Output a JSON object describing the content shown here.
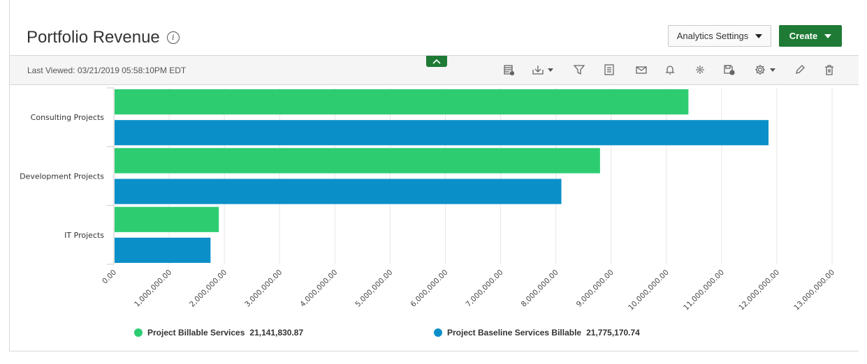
{
  "header": {
    "title": "Portfolio Revenue",
    "analytics_settings_label": "Analytics Settings",
    "create_label": "Create"
  },
  "toolbar": {
    "last_viewed": "Last Viewed: 03/21/2019 05:58:10PM EDT",
    "tools": [
      "table-view-icon",
      "download-icon",
      "filter-icon",
      "report-icon",
      "email-icon",
      "bell-icon",
      "collaborate-icon",
      "save-icon",
      "settings-icon",
      "edit-icon",
      "delete-icon"
    ]
  },
  "colors": {
    "accent": "#1e7a34",
    "series_billable": "#2ecc71",
    "series_baseline": "#0b8fc9"
  },
  "chart_data": {
    "type": "bar",
    "orientation": "horizontal",
    "categories": [
      "Consulting Projects",
      "Development Projects",
      "IT Projects"
    ],
    "series": [
      {
        "name": "Project Billable Services",
        "total": "21,141,830.87",
        "color": "#2ecc71",
        "values": [
          10400000,
          8800000,
          1900000
        ]
      },
      {
        "name": "Project Baseline Services Billable",
        "total": "21,775,170.74",
        "color": "#0b8fc9",
        "values": [
          11850000,
          8100000,
          1750000
        ]
      }
    ],
    "xlim": [
      0,
      13000000
    ],
    "x_ticks": [
      "0.00",
      "1,000,000.00",
      "2,000,000.00",
      "3,000,000.00",
      "4,000,000.00",
      "5,000,000.00",
      "6,000,000.00",
      "7,000,000.00",
      "8,000,000.00",
      "9,000,000.00",
      "10,000,000.00",
      "11,000,000.00",
      "12,000,000.00",
      "13,000,000.00"
    ],
    "grid": true,
    "legend_position": "bottom"
  }
}
